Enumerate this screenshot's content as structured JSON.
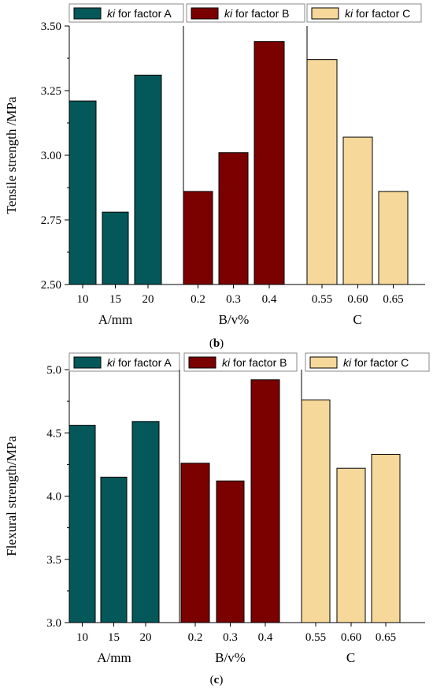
{
  "chart_data": [
    {
      "type": "bar",
      "caption": "(b)",
      "ylabel": "Tensile strength /MPa",
      "ylim": [
        2.5,
        3.5
      ],
      "yticks": [
        "2.50",
        "2.75",
        "3.00",
        "3.25",
        "3.50"
      ],
      "ytick_values": [
        2.5,
        2.75,
        3.0,
        3.25,
        3.5
      ],
      "groups": [
        {
          "legend": {
            "italic": "ki",
            "rest": " for factor A"
          },
          "xlabel": "A/mm",
          "categories": [
            "10",
            "15",
            "20"
          ],
          "values": [
            3.21,
            2.78,
            3.31
          ],
          "color": "#04585a"
        },
        {
          "legend": {
            "italic": "ki",
            "rest": " for factor B"
          },
          "xlabel": "B/v%",
          "categories": [
            "0.2",
            "0.3",
            "0.4"
          ],
          "values": [
            2.86,
            3.01,
            3.44
          ],
          "color": "#7b0000"
        },
        {
          "legend": {
            "italic": "ki",
            "rest": " for factor C"
          },
          "xlabel": "C",
          "categories": [
            "0.55",
            "0.60",
            "0.65"
          ],
          "values": [
            3.37,
            3.07,
            2.86
          ],
          "color": "#f5d89a"
        }
      ]
    },
    {
      "type": "bar",
      "caption": "(c)",
      "ylabel": "Flexural strength/MPa",
      "ylim": [
        3.0,
        5.0
      ],
      "yticks": [
        "3.0",
        "3.5",
        "4.0",
        "4.5",
        "5.0"
      ],
      "ytick_values": [
        3.0,
        3.5,
        4.0,
        4.5,
        5.0
      ],
      "groups": [
        {
          "legend": {
            "italic": "ki",
            "rest": " for factor A"
          },
          "xlabel": "A/mm",
          "categories": [
            "10",
            "15",
            "20"
          ],
          "values": [
            4.56,
            4.15,
            4.59
          ],
          "color": "#04585a"
        },
        {
          "legend": {
            "italic": "ki",
            "rest": " for factor B"
          },
          "xlabel": "B/v%",
          "categories": [
            "0.2",
            "0.3",
            "0.4"
          ],
          "values": [
            4.26,
            4.12,
            4.92
          ],
          "color": "#7b0000"
        },
        {
          "legend": {
            "italic": "ki",
            "rest": " for factor C"
          },
          "xlabel": "C",
          "categories": [
            "0.55",
            "0.60",
            "0.65"
          ],
          "values": [
            4.76,
            4.22,
            4.33
          ],
          "color": "#f5d89a"
        }
      ]
    }
  ]
}
